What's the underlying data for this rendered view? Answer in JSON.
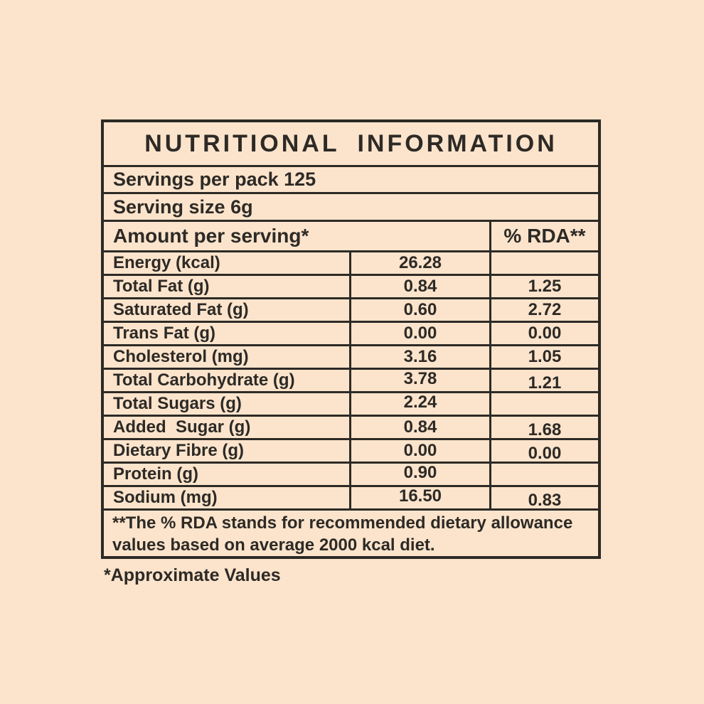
{
  "page": {
    "background_color": "#fce4cc",
    "ink_color": "#2d2a26"
  },
  "label": {
    "title": "NUTRITIONAL INFORMATION",
    "servings_per_pack": "Servings per pack 125",
    "serving_size": "Serving size 6g",
    "amount_header": "Amount per serving*",
    "rda_header": "% RDA**",
    "rows": [
      {
        "label": "Energy (kcal)",
        "amount": "26.28",
        "rda": ""
      },
      {
        "label": "Total Fat (g)",
        "amount": "0.84",
        "rda": "1.25"
      },
      {
        "label": "Saturated Fat (g)",
        "amount": "0.60",
        "rda": "2.72"
      },
      {
        "label": "Trans Fat (g)",
        "amount": "0.00",
        "rda": "0.00"
      },
      {
        "label": "Cholesterol (mg)",
        "amount": "3.16",
        "rda": "1.05"
      },
      {
        "label": "Total Carbohydrate (g)",
        "amount": "3.78",
        "rda": "1.21"
      },
      {
        "label": "Total Sugars (g)",
        "amount": "2.24",
        "rda": ""
      },
      {
        "label": "Added  Sugar (g)",
        "amount": "0.84",
        "rda": "1.68"
      },
      {
        "label": "Dietary Fibre (g)",
        "amount": "0.00",
        "rda": "0.00"
      },
      {
        "label": "Protein (g)",
        "amount": "0.90",
        "rda": ""
      },
      {
        "label": "Sodium (mg)",
        "amount": "16.50",
        "rda": "0.83"
      }
    ],
    "footnote_line1": "**The % RDA stands for recommended dietary allowance",
    "footnote_line2": "values based on average 2000 kcal diet.",
    "approx_note": "*Approximate Values"
  }
}
